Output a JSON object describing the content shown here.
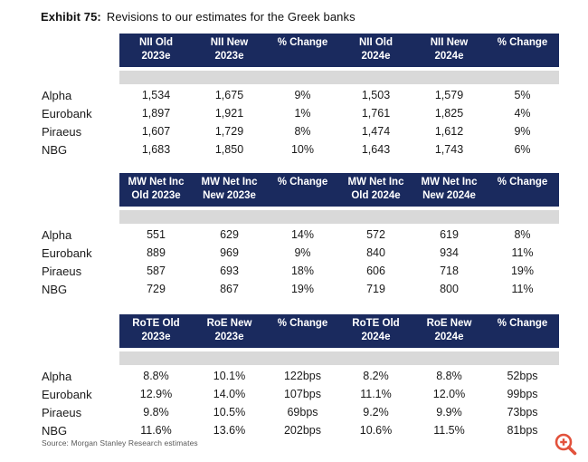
{
  "title": {
    "label": "Exhibit 75:",
    "text": "Revisions to our estimates for the Greek banks"
  },
  "tables": [
    {
      "name": "NII revisions",
      "headers": [
        {
          "line1": "NII Old",
          "line2": "2023e"
        },
        {
          "line1": "NII New",
          "line2": "2023e"
        },
        {
          "line1": "% Change",
          "line2": ""
        },
        {
          "line1": "NII Old",
          "line2": "2024e"
        },
        {
          "line1": "NII New",
          "line2": "2024e"
        },
        {
          "line1": "% Change",
          "line2": ""
        }
      ],
      "rows": [
        {
          "label": "Alpha",
          "values": [
            "1,534",
            "1,675",
            "9%",
            "1,503",
            "1,579",
            "5%"
          ]
        },
        {
          "label": "Eurobank",
          "values": [
            "1,897",
            "1,921",
            "1%",
            "1,761",
            "1,825",
            "4%"
          ]
        },
        {
          "label": "Piraeus",
          "values": [
            "1,607",
            "1,729",
            "8%",
            "1,474",
            "1,612",
            "9%"
          ]
        },
        {
          "label": "NBG",
          "values": [
            "1,683",
            "1,850",
            "10%",
            "1,643",
            "1,743",
            "6%"
          ]
        }
      ]
    },
    {
      "name": "MW Net Income revisions",
      "headers": [
        {
          "line1": "MW Net Inc",
          "line2": "Old 2023e"
        },
        {
          "line1": "MW Net Inc",
          "line2": "New 2023e"
        },
        {
          "line1": "% Change",
          "line2": ""
        },
        {
          "line1": "MW Net Inc",
          "line2": "Old 2024e"
        },
        {
          "line1": "MW Net Inc",
          "line2": "New 2024e"
        },
        {
          "line1": "% Change",
          "line2": ""
        }
      ],
      "rows": [
        {
          "label": "Alpha",
          "values": [
            "551",
            "629",
            "14%",
            "572",
            "619",
            "8%"
          ]
        },
        {
          "label": "Eurobank",
          "values": [
            "889",
            "969",
            "9%",
            "840",
            "934",
            "11%"
          ]
        },
        {
          "label": "Piraeus",
          "values": [
            "587",
            "693",
            "18%",
            "606",
            "718",
            "19%"
          ]
        },
        {
          "label": "NBG",
          "values": [
            "729",
            "867",
            "19%",
            "719",
            "800",
            "11%"
          ]
        }
      ]
    },
    {
      "name": "RoTE / RoE revisions",
      "headers": [
        {
          "line1": "RoTE Old",
          "line2": "2023e"
        },
        {
          "line1": "RoE New",
          "line2": "2023e"
        },
        {
          "line1": "% Change",
          "line2": ""
        },
        {
          "line1": "RoTE Old",
          "line2": "2024e"
        },
        {
          "line1": "RoE New",
          "line2": "2024e"
        },
        {
          "line1": "% Change",
          "line2": ""
        }
      ],
      "rows": [
        {
          "label": "Alpha",
          "values": [
            "8.8%",
            "10.1%",
            "122bps",
            "8.2%",
            "8.8%",
            "52bps"
          ]
        },
        {
          "label": "Eurobank",
          "values": [
            "12.9%",
            "14.0%",
            "107bps",
            "11.1%",
            "12.0%",
            "99bps"
          ]
        },
        {
          "label": "Piraeus",
          "values": [
            "9.8%",
            "10.5%",
            "69bps",
            "9.2%",
            "9.9%",
            "73bps"
          ]
        },
        {
          "label": "NBG",
          "values": [
            "11.6%",
            "13.6%",
            "202bps",
            "10.6%",
            "11.5%",
            "81bps"
          ]
        }
      ]
    }
  ],
  "source": "Source: Morgan Stanley Research estimates",
  "icons": {
    "zoom_in": "magnifier-plus-icon"
  },
  "colors": {
    "header_bg": "#1a2a5e",
    "header_text": "#ffffff",
    "band_bg": "#d9d9d9",
    "body_text": "#1a1a1a",
    "source_text": "#595959",
    "zoom_icon": "#e2523c"
  }
}
